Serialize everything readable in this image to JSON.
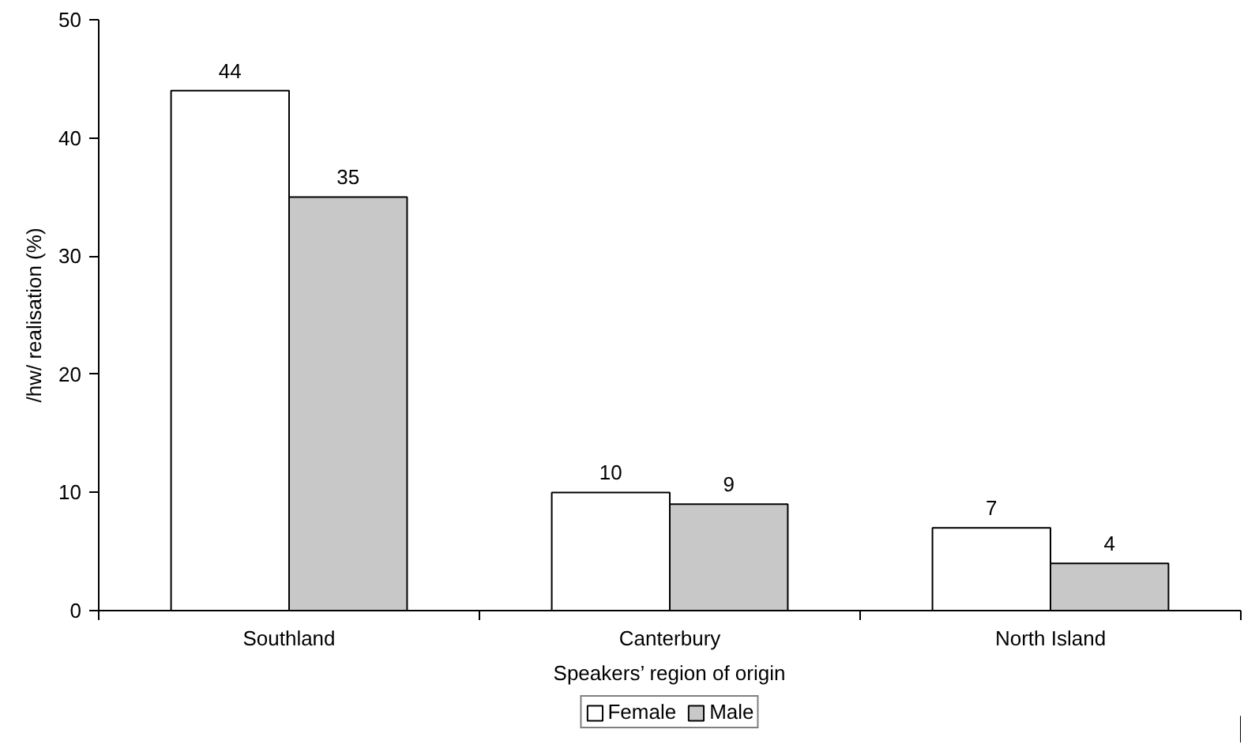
{
  "chart_data": {
    "type": "bar",
    "xlabel": "Speakers’ region of origin",
    "ylabel": "/hw/ realisation (%)",
    "categories": [
      "Southland",
      "Canterbury",
      "North Island"
    ],
    "series": [
      {
        "name": "Female",
        "color": "#ffffff",
        "values": [
          44,
          10,
          7
        ]
      },
      {
        "name": "Male",
        "color": "#c8c8c8",
        "values": [
          35,
          9,
          4
        ]
      }
    ],
    "ylim": [
      0,
      50
    ],
    "yticks": [
      0,
      10,
      20,
      30,
      40,
      50
    ],
    "grid": false,
    "legend": "bottom",
    "data_labels": true
  }
}
